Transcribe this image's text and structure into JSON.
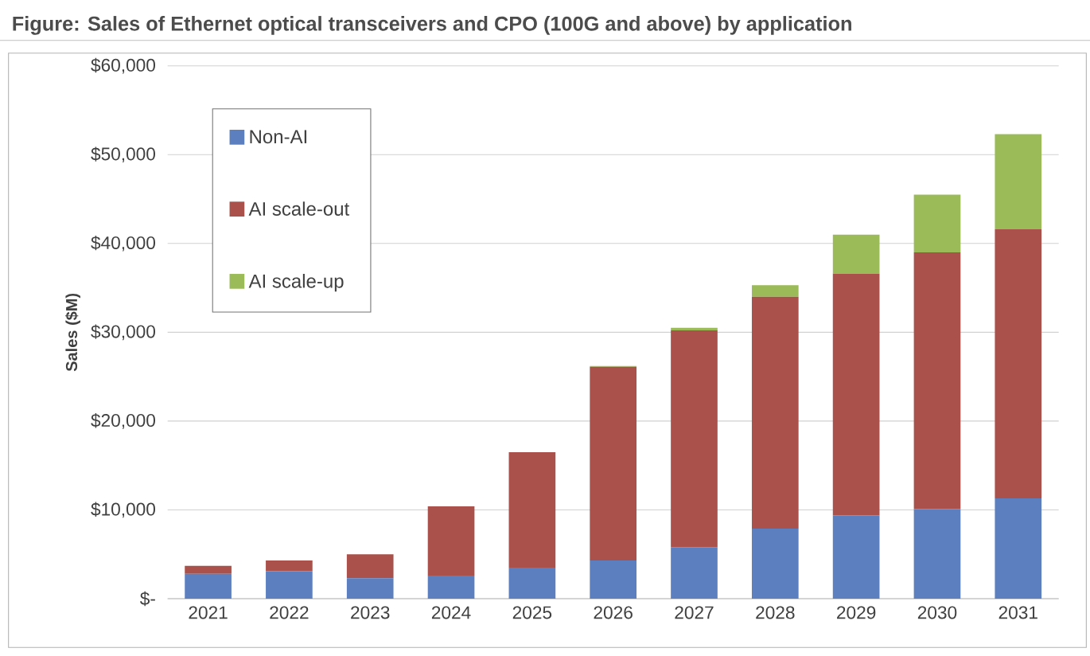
{
  "chart_data": {
    "type": "bar",
    "stacked": true,
    "title": "Figure: Sales of Ethernet optical transceivers and CPO (100G and above) by application",
    "ylabel": "Sales ($M)",
    "categories": [
      "2021",
      "2022",
      "2023",
      "2024",
      "2025",
      "2026",
      "2027",
      "2028",
      "2029",
      "2030",
      "2031"
    ],
    "series": [
      {
        "name": "Non-AI",
        "color": "#5b7fbf",
        "values": [
          2800,
          3100,
          2300,
          2600,
          3500,
          4300,
          5800,
          7900,
          9400,
          10100,
          11300
        ]
      },
      {
        "name": "AI scale-out",
        "color": "#a9514a",
        "values": [
          900,
          1200,
          2700,
          7800,
          13000,
          21800,
          24400,
          26100,
          27200,
          28900,
          30300
        ]
      },
      {
        "name": "AI scale-up",
        "color": "#9bbb59",
        "values": [
          0,
          0,
          0,
          0,
          0,
          100,
          300,
          1300,
          4400,
          6500,
          10700
        ]
      }
    ],
    "ylim": [
      0,
      60000
    ],
    "yticks": [
      {
        "value": 0,
        "label": "$-"
      },
      {
        "value": 10000,
        "label": "$10,000"
      },
      {
        "value": 20000,
        "label": "$20,000"
      },
      {
        "value": 30000,
        "label": "$30,000"
      },
      {
        "value": 40000,
        "label": "$40,000"
      },
      {
        "value": 50000,
        "label": "$50,000"
      },
      {
        "value": 60000,
        "label": "$60,000"
      }
    ],
    "grid": "y",
    "legend": "top left"
  }
}
